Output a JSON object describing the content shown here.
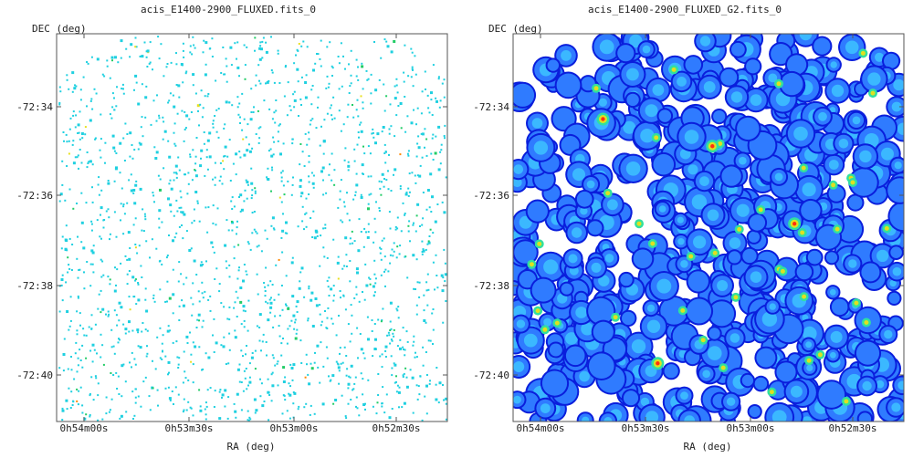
{
  "chart_data": [
    {
      "type": "heatmap",
      "title": "acis_E1400-2900_FLUXED.fits_0",
      "xlabel": "RA (deg)",
      "ylabel": "DEC (deg)",
      "x_ticks": [
        "0h54m00s",
        "0h53m30s",
        "0h53m00s",
        "0h52m30s"
      ],
      "y_ticks": [
        "-72:34",
        "-72:36",
        "-72:38",
        "-72:40"
      ],
      "style": "sparse-counts",
      "colormap": [
        "#1fd0e0",
        "#22cc66",
        "#e8e020",
        "#ff8800"
      ]
    },
    {
      "type": "heatmap",
      "title": "acis_E1400-2900_FLUXED_G2.fits_0",
      "xlabel": "RA (deg)",
      "ylabel": "DEC (deg)",
      "x_ticks": [
        "0h54m00s",
        "0h53m30s",
        "0h53m00s",
        "0h52m30s"
      ],
      "y_ticks": [
        "-72:34",
        "-72:36",
        "-72:38",
        "-72:40"
      ],
      "style": "smoothed",
      "colormap": [
        "#0a1edc",
        "#2f7bff",
        "#3fc8ff",
        "#30e0a0",
        "#e0e020",
        "#ff3010"
      ]
    }
  ]
}
